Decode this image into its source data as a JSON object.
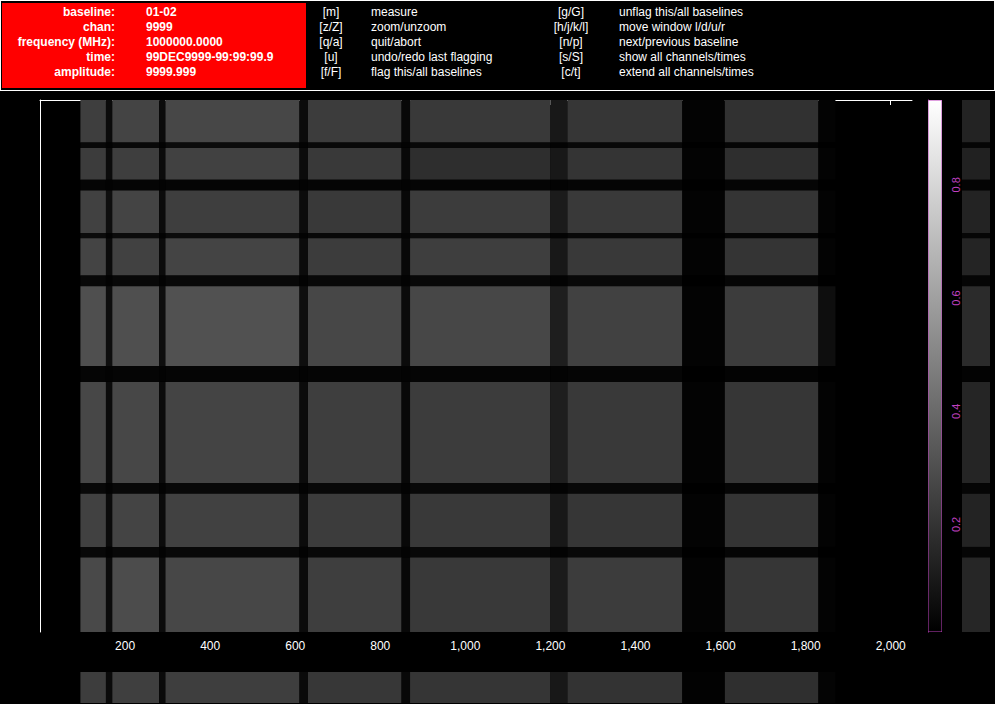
{
  "header": {
    "fields": [
      {
        "label": "baseline:",
        "value": "01-02"
      },
      {
        "label": "chan:",
        "value": "9999"
      },
      {
        "label": "frequency (MHz):",
        "value": "1000000.0000"
      },
      {
        "label": "time:",
        "value": "99DEC9999-99:99:99.9"
      },
      {
        "label": "amplitude:",
        "value": "9999.999"
      }
    ],
    "keys": [
      {
        "key": "[m]",
        "action": "measure"
      },
      {
        "key": "[z/Z]",
        "action": "zoom/unzoom"
      },
      {
        "key": "[q/a]",
        "action": "quit/abort"
      },
      {
        "key": "[u]",
        "action": "undo/redo last flagging"
      },
      {
        "key": "[f/F]",
        "action": "flag this/all baselines"
      },
      {
        "key": "[g/G]",
        "action": "unflag this/all baselines"
      },
      {
        "key": "[h/j/k/l]",
        "action": "move window l/d/u/r"
      },
      {
        "key": "[n/p]",
        "action": "next/previous baseline"
      },
      {
        "key": "[s/S]",
        "action": "show all channels/times"
      },
      {
        "key": "[c/t]",
        "action": "extend all channels/times"
      }
    ]
  },
  "chart_data": {
    "type": "heatmap",
    "x_edges": [
      95,
      155,
      170,
      280,
      295,
      610,
      630,
      850,
      870,
      1200,
      1240,
      1510,
      1610,
      1830,
      1870
    ],
    "y_edges": [
      0,
      8,
      9,
      15,
      17,
      25,
      26,
      33,
      35,
      50,
      53,
      72,
      74,
      84,
      86,
      100
    ],
    "values": [
      [
        0.24,
        0.05,
        0.26,
        0.05,
        0.27,
        0.05,
        0.23,
        0.04,
        0.22,
        0.1,
        0.21,
        0.02,
        0.19,
        0.02
      ],
      [
        0.04,
        0.02,
        0.04,
        0.02,
        0.05,
        0.02,
        0.04,
        0.02,
        0.04,
        0.02,
        0.04,
        0.01,
        0.03,
        0.01
      ],
      [
        0.23,
        0.05,
        0.24,
        0.05,
        0.25,
        0.05,
        0.22,
        0.04,
        0.18,
        0.1,
        0.2,
        0.02,
        0.18,
        0.02
      ],
      [
        0.03,
        0.02,
        0.03,
        0.02,
        0.03,
        0.02,
        0.03,
        0.02,
        0.03,
        0.02,
        0.03,
        0.01,
        0.03,
        0.01
      ],
      [
        0.25,
        0.06,
        0.26,
        0.05,
        0.24,
        0.05,
        0.22,
        0.04,
        0.23,
        0.11,
        0.22,
        0.02,
        0.2,
        0.02
      ],
      [
        0.05,
        0.02,
        0.05,
        0.02,
        0.05,
        0.02,
        0.04,
        0.02,
        0.05,
        0.02,
        0.04,
        0.01,
        0.03,
        0.01
      ],
      [
        0.26,
        0.05,
        0.25,
        0.05,
        0.26,
        0.05,
        0.23,
        0.04,
        0.24,
        0.1,
        0.22,
        0.02,
        0.2,
        0.02
      ],
      [
        0.04,
        0.02,
        0.04,
        0.02,
        0.04,
        0.02,
        0.04,
        0.02,
        0.04,
        0.02,
        0.04,
        0.01,
        0.03,
        0.01
      ],
      [
        0.3,
        0.06,
        0.3,
        0.06,
        0.31,
        0.06,
        0.27,
        0.05,
        0.27,
        0.12,
        0.25,
        0.02,
        0.23,
        0.06
      ],
      [
        0.03,
        0.02,
        0.03,
        0.02,
        0.03,
        0.02,
        0.03,
        0.02,
        0.03,
        0.02,
        0.03,
        0.01,
        0.02,
        0.01
      ],
      [
        0.27,
        0.05,
        0.27,
        0.05,
        0.26,
        0.05,
        0.24,
        0.04,
        0.23,
        0.12,
        0.22,
        0.02,
        0.21,
        0.02
      ],
      [
        0.04,
        0.02,
        0.04,
        0.02,
        0.04,
        0.02,
        0.04,
        0.02,
        0.04,
        0.02,
        0.04,
        0.01,
        0.03,
        0.01
      ],
      [
        0.25,
        0.05,
        0.26,
        0.05,
        0.25,
        0.05,
        0.23,
        0.04,
        0.22,
        0.1,
        0.21,
        0.02,
        0.2,
        0.02
      ],
      [
        0.04,
        0.02,
        0.04,
        0.02,
        0.04,
        0.02,
        0.04,
        0.02,
        0.04,
        0.02,
        0.04,
        0.01,
        0.03,
        0.01
      ],
      [
        0.28,
        0.05,
        0.29,
        0.05,
        0.27,
        0.05,
        0.24,
        0.04,
        0.22,
        0.11,
        0.23,
        0.02,
        0.21,
        0.02
      ]
    ],
    "xlim": [
      0,
      2050
    ],
    "xticks": [
      200,
      400,
      600,
      800,
      1000,
      1200,
      1400,
      1600,
      1800,
      2000
    ],
    "ylim": [
      0,
      100
    ],
    "tick_labels": "x",
    "grid": false,
    "colorbar": {
      "range": [
        0.01,
        0.95
      ],
      "ticks": [
        0.2,
        0.4,
        0.6,
        0.8
      ]
    }
  }
}
